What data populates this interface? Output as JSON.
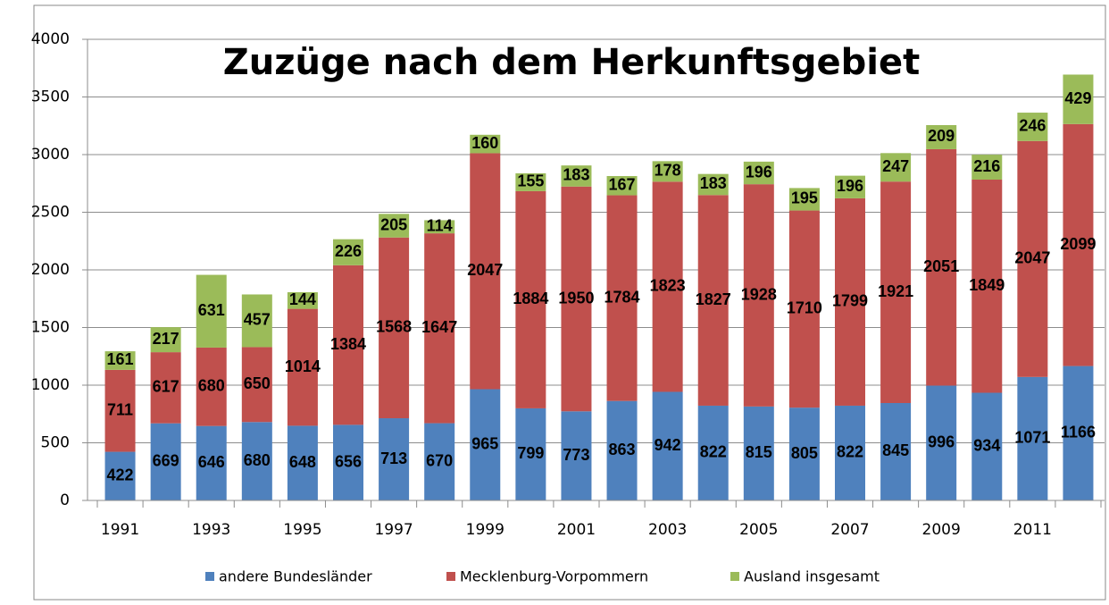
{
  "chart_data": {
    "type": "bar",
    "stacked": true,
    "title": "Zuzüge nach dem Herkunftsgebiet",
    "categories": [
      "1991",
      null,
      "1993",
      null,
      "1995",
      null,
      "1997",
      null,
      "1999",
      null,
      "2001",
      null,
      "2003",
      null,
      "2005",
      null,
      "2007",
      null,
      "2009",
      null,
      "2011",
      null
    ],
    "series": [
      {
        "name": "andere Bundesländer",
        "color": "#4f81bd",
        "values": [
          422,
          669,
          646,
          680,
          648,
          656,
          713,
          670,
          965,
          799,
          773,
          863,
          942,
          822,
          815,
          805,
          822,
          845,
          996,
          934,
          1071,
          1166
        ]
      },
      {
        "name": "Mecklenburg-Vorpommern",
        "color": "#c0504d",
        "values": [
          711,
          617,
          680,
          650,
          1014,
          1384,
          1568,
          1647,
          2047,
          1884,
          1950,
          1784,
          1823,
          1827,
          1928,
          1710,
          1799,
          1921,
          2051,
          1849,
          2047,
          2099
        ]
      },
      {
        "name": "Ausland insgesamt",
        "color": "#9bbb59",
        "values": [
          161,
          217,
          631,
          457,
          144,
          226,
          205,
          114,
          160,
          155,
          183,
          167,
          178,
          183,
          196,
          195,
          196,
          247,
          209,
          216,
          246,
          429
        ]
      }
    ],
    "ylim": [
      0,
      4000
    ],
    "yticks": [
      0,
      500,
      1000,
      1500,
      2000,
      2500,
      3000,
      3500,
      4000
    ],
    "grid": true,
    "legend": "bottom"
  }
}
